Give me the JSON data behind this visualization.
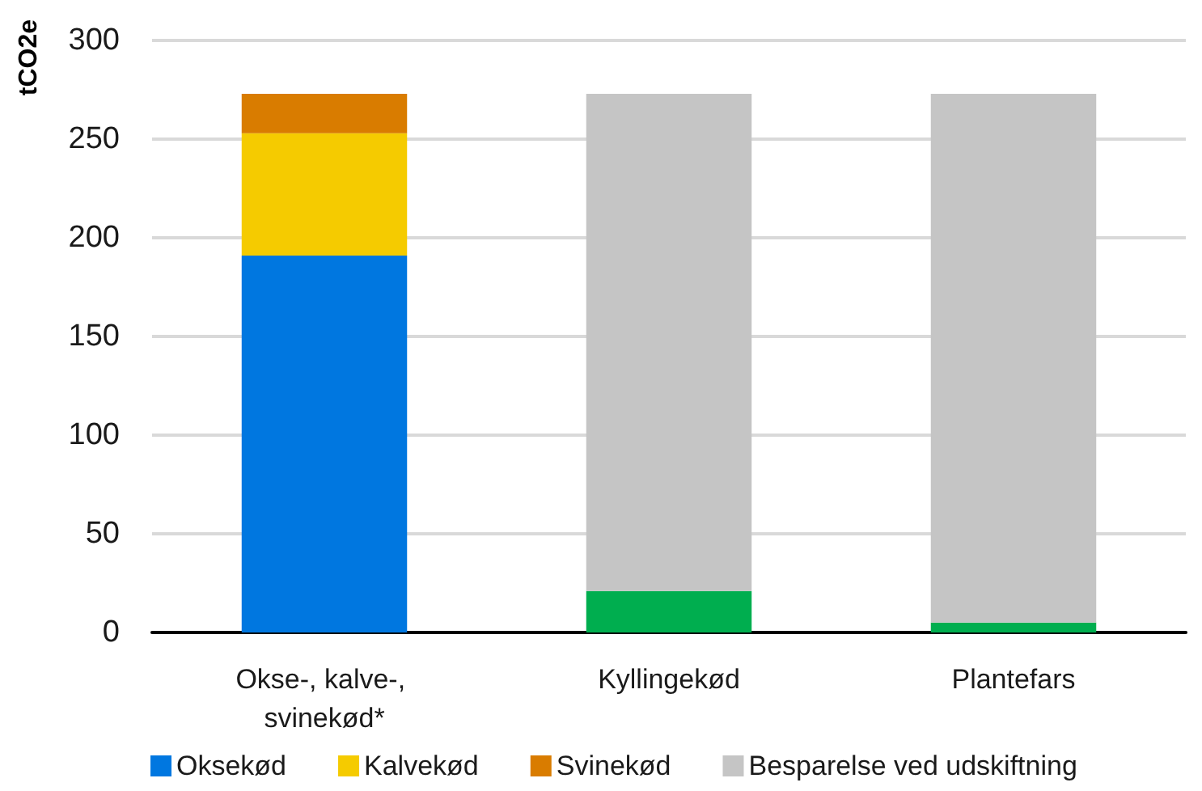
{
  "chart_data": {
    "type": "bar",
    "stacked": true,
    "ylabel": "tCO2e",
    "categories": [
      "Okse-, kalve-, svinekød*",
      "Kyllingekød",
      "Plantefars"
    ],
    "series": [
      {
        "name": "Oksekød",
        "color": "#0077e0",
        "values": [
          191,
          null,
          null
        ]
      },
      {
        "name": "Kalvekød",
        "color": "#f5cb00",
        "values": [
          62,
          null,
          null
        ]
      },
      {
        "name": "Svinekød",
        "color": "#d97c00",
        "values": [
          20,
          null,
          null
        ]
      },
      {
        "color": "#00ae4f",
        "values": [
          null,
          21,
          5
        ]
      },
      {
        "name": "Besparelse ved udskiftning",
        "color": "#c5c5c5",
        "values": [
          null,
          252,
          268
        ]
      }
    ],
    "ylim": [
      0,
      300
    ],
    "yticks": [
      0,
      50,
      100,
      150,
      200,
      250,
      300
    ],
    "grid": "y",
    "legend": "bottom"
  }
}
